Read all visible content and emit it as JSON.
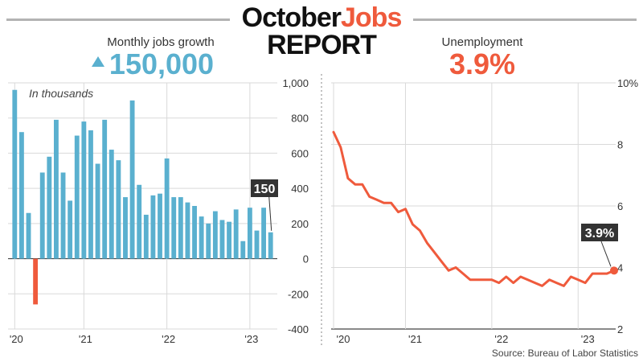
{
  "header": {
    "title_part1": "October",
    "title_part2": "Jobs",
    "subtitle": "REPORT"
  },
  "jobs_panel": {
    "heading": "Monthly jobs growth",
    "headline_value": "150,000",
    "note": "In thousands",
    "callout": "150"
  },
  "unemployment_panel": {
    "heading": "Unemployment",
    "headline_value": "3.9%",
    "callout": "3.9%"
  },
  "source": "Source: Bureau of Labor Statistics",
  "colors": {
    "bar": "#5ab0cf",
    "negative_bar": "#ef5a3c",
    "line": "#ef5a3c",
    "grid": "#d9d9d9",
    "callout_bg": "#333333"
  },
  "chart_data": [
    {
      "type": "bar",
      "title": "Monthly jobs growth",
      "note": "In thousands",
      "ylim": [
        -400,
        1000
      ],
      "yticks": [
        -400,
        -200,
        0,
        200,
        400,
        600,
        800,
        1000
      ],
      "ytick_labels": [
        "-400",
        "-200",
        "0",
        "200",
        "400",
        "600",
        "800",
        "1,000"
      ],
      "xtick_labels": [
        "'20",
        "'21",
        "'22",
        "'23"
      ],
      "grid": true,
      "series": [
        {
          "values": [
            960,
            720,
            260,
            -260,
            490,
            580,
            790,
            490,
            330,
            700,
            780,
            730,
            540,
            790,
            620,
            560,
            350,
            900,
            420,
            250,
            360,
            370,
            570,
            350,
            350,
            320,
            300,
            240,
            200,
            270,
            220,
            210,
            280,
            100,
            290,
            160,
            290,
            150
          ]
        }
      ],
      "callout_value": 150
    },
    {
      "type": "line",
      "title": "Unemployment",
      "ylim": [
        2,
        10
      ],
      "yticks": [
        2,
        4,
        6,
        8,
        10
      ],
      "ytick_labels": [
        "2",
        "4",
        "6",
        "8",
        "10%"
      ],
      "xtick_labels": [
        "'20",
        "'21",
        "'22",
        "'23"
      ],
      "grid": true,
      "series": [
        {
          "values": [
            8.4,
            7.9,
            6.9,
            6.7,
            6.7,
            6.3,
            6.2,
            6.1,
            6.1,
            5.8,
            5.9,
            5.4,
            5.2,
            4.8,
            4.5,
            4.2,
            3.9,
            4.0,
            3.8,
            3.6,
            3.6,
            3.6,
            3.6,
            3.5,
            3.7,
            3.5,
            3.7,
            3.6,
            3.5,
            3.4,
            3.6,
            3.5,
            3.4,
            3.7,
            3.6,
            3.5,
            3.8,
            3.8,
            3.8,
            3.9
          ]
        }
      ],
      "callout_value": 3.9
    }
  ]
}
